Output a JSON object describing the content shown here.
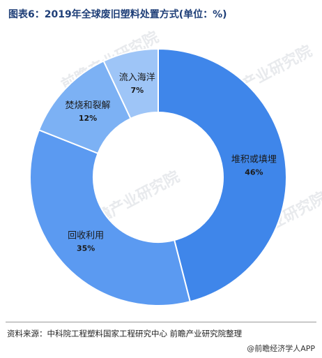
{
  "title": "图表6：2019年全球废旧塑料处置方式(单位：%)",
  "watermark": "前瞻产业研究院",
  "source": "资料来源：中科院工程塑料国家工程研究中心 前瞻产业研究院整理",
  "credit": "@前瞻经济学人APP",
  "chart_data": {
    "type": "pie",
    "donut": true,
    "title": "",
    "slices": [
      {
        "label": "堆积或填埋",
        "value": 46,
        "percent_text": "46%",
        "color": "#3f86ea"
      },
      {
        "label": "回收利用",
        "value": 35,
        "percent_text": "35%",
        "color": "#5b9af1"
      },
      {
        "label": "焚烧和裂解",
        "value": 12,
        "percent_text": "12%",
        "color": "#7cb1f4"
      },
      {
        "label": "流入海洋",
        "value": 7,
        "percent_text": "7%",
        "color": "#9ec5f7"
      }
    ]
  }
}
